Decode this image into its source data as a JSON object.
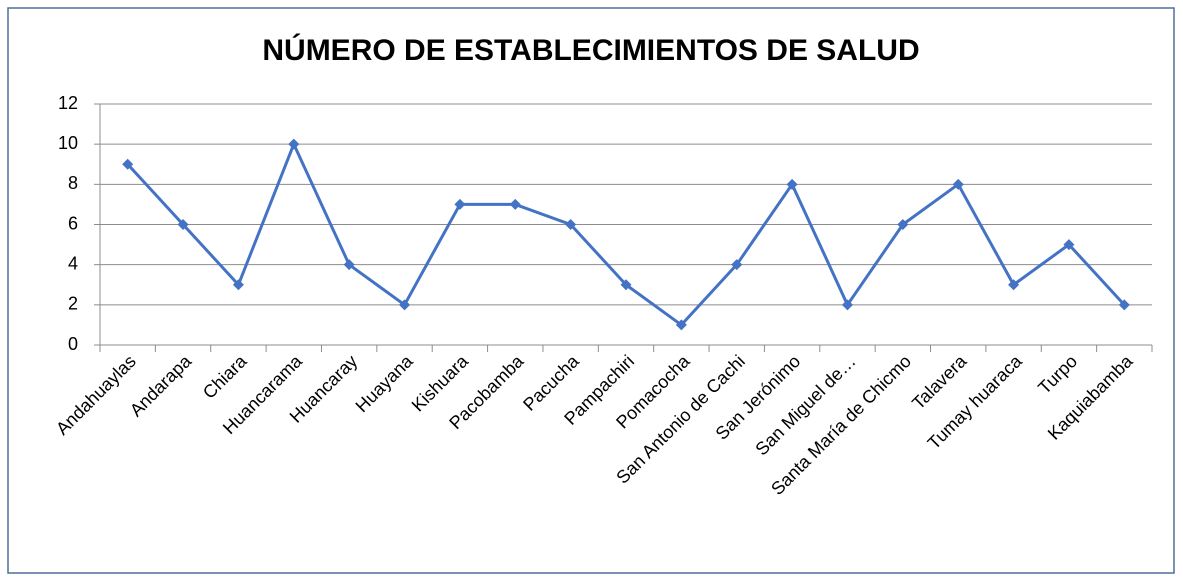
{
  "chart_data": {
    "type": "line",
    "title": "NÚMERO DE ESTABLECIMIENTOS DE SALUD",
    "categories": [
      "Andahuaylas",
      "Andarapa",
      "Chiara",
      "Huancarama",
      "Huancaray",
      "Huayana",
      "Kishuara",
      "Pacobamba",
      "Pacucha",
      "Pampachiri",
      "Pomacocha",
      "San Antonio de Cachi",
      "San Jerónimo",
      "San Miguel de…",
      "Santa María de Chicmo",
      "Talavera",
      "Tumay huaraca",
      "Turpo",
      "Kaquiabamba"
    ],
    "values": [
      9,
      6,
      3,
      10,
      4,
      2,
      7,
      7,
      6,
      3,
      1,
      4,
      8,
      2,
      6,
      8,
      3,
      5,
      2
    ],
    "color": "#4472c4",
    "ylim": [
      0,
      12
    ],
    "yticks": [
      0,
      2,
      4,
      6,
      8,
      10,
      12
    ],
    "grid": true
  }
}
